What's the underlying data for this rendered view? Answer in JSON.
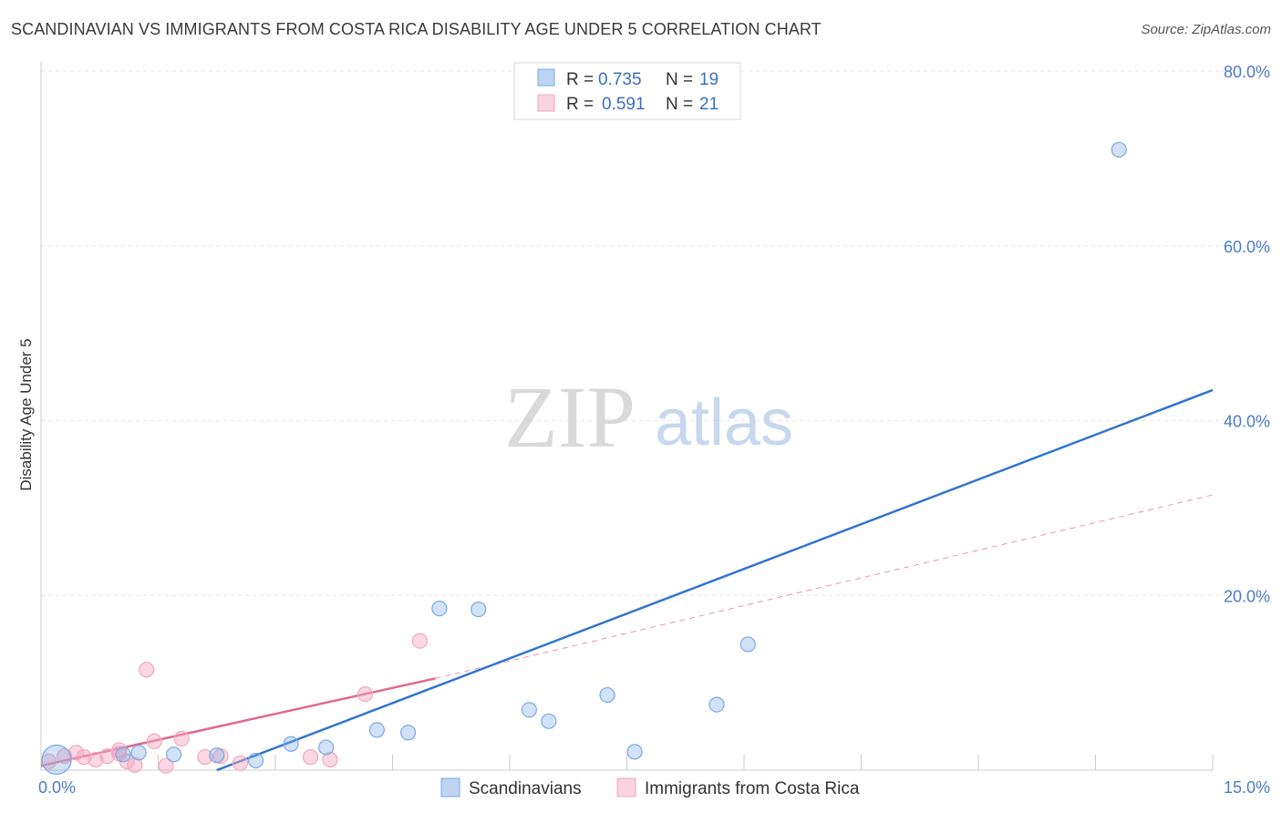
{
  "header": {
    "title": "SCANDINAVIAN VS IMMIGRANTS FROM COSTA RICA DISABILITY AGE UNDER 5 CORRELATION CHART",
    "source": "Source: ZipAtlas.com"
  },
  "watermark": {
    "zip": "ZIP",
    "atlas": "atlas"
  },
  "chart_data": {
    "type": "scatter",
    "title": "SCANDINAVIAN VS IMMIGRANTS FROM COSTA RICA DISABILITY AGE UNDER 5 CORRELATION CHART",
    "xlabel": "",
    "ylabel": "Disability Age Under 5",
    "xlim": [
      0,
      15
    ],
    "ylim": [
      0,
      80
    ],
    "x_tick_labels": [
      "0.0%",
      "15.0%"
    ],
    "y_ticks": [
      20,
      40,
      60,
      80
    ],
    "y_tick_labels": [
      "20.0%",
      "40.0%",
      "60.0%",
      "80.0%"
    ],
    "grid": true,
    "colors": {
      "scandinavians": "#7aaae6",
      "scandinavians_line": "#2f74d0",
      "costa_rica": "#f4a7c0",
      "costa_rica_line": "#e0688f",
      "tick": "#4a7cc9"
    },
    "legend_top": [
      {
        "series": "Scandinavians",
        "r_label": "R =",
        "r_value": "0.735",
        "n_label": "N =",
        "n_value": "19"
      },
      {
        "series": "Immigrants from Costa Rica",
        "r_label": "R =",
        "r_value": "0.591",
        "n_label": "N =",
        "n_value": "21"
      }
    ],
    "series": [
      {
        "name": "Scandinavians",
        "points": [
          [
            0.2,
            1.2
          ],
          [
            1.05,
            1.8
          ],
          [
            1.25,
            2.0
          ],
          [
            1.7,
            1.8
          ],
          [
            2.25,
            1.7
          ],
          [
            2.75,
            1.1
          ],
          [
            3.2,
            3.0
          ],
          [
            3.65,
            2.6
          ],
          [
            4.3,
            4.6
          ],
          [
            4.7,
            4.3
          ],
          [
            5.1,
            18.5
          ],
          [
            5.6,
            18.4
          ],
          [
            6.25,
            6.9
          ],
          [
            6.5,
            5.6
          ],
          [
            7.25,
            8.6
          ],
          [
            7.6,
            2.1
          ],
          [
            8.65,
            7.5
          ],
          [
            9.05,
            14.4
          ],
          [
            13.8,
            71.0
          ]
        ],
        "trend": {
          "x0": 2.25,
          "y0": 0.0,
          "x1": 15.0,
          "y1": 43.5,
          "style": "solid"
        }
      },
      {
        "name": "Immigrants from Costa Rica",
        "points": [
          [
            0.1,
            1.0
          ],
          [
            0.3,
            1.6
          ],
          [
            0.55,
            1.5
          ],
          [
            0.7,
            1.2
          ],
          [
            0.85,
            1.6
          ],
          [
            1.0,
            1.9
          ],
          [
            1.1,
            1.0
          ],
          [
            1.2,
            0.6
          ],
          [
            1.35,
            11.5
          ],
          [
            1.45,
            3.3
          ],
          [
            1.6,
            0.5
          ],
          [
            1.8,
            3.6
          ],
          [
            2.1,
            1.5
          ],
          [
            2.3,
            1.6
          ],
          [
            2.55,
            0.8
          ],
          [
            3.45,
            1.5
          ],
          [
            3.7,
            1.2
          ],
          [
            4.15,
            8.7
          ],
          [
            4.85,
            14.8
          ],
          [
            1.0,
            2.3
          ],
          [
            0.45,
            2.0
          ]
        ],
        "trend": {
          "x0": 0.0,
          "y0": 0.5,
          "x1": 5.05,
          "y1": 10.5,
          "style": "solid"
        },
        "trend_extension": {
          "x0": 5.05,
          "y0": 10.5,
          "x1": 15.0,
          "y1": 31.5,
          "style": "dashed"
        }
      }
    ]
  },
  "legend_bottom": [
    {
      "label": "Scandinavians"
    },
    {
      "label": "Immigrants from Costa Rica"
    }
  ]
}
